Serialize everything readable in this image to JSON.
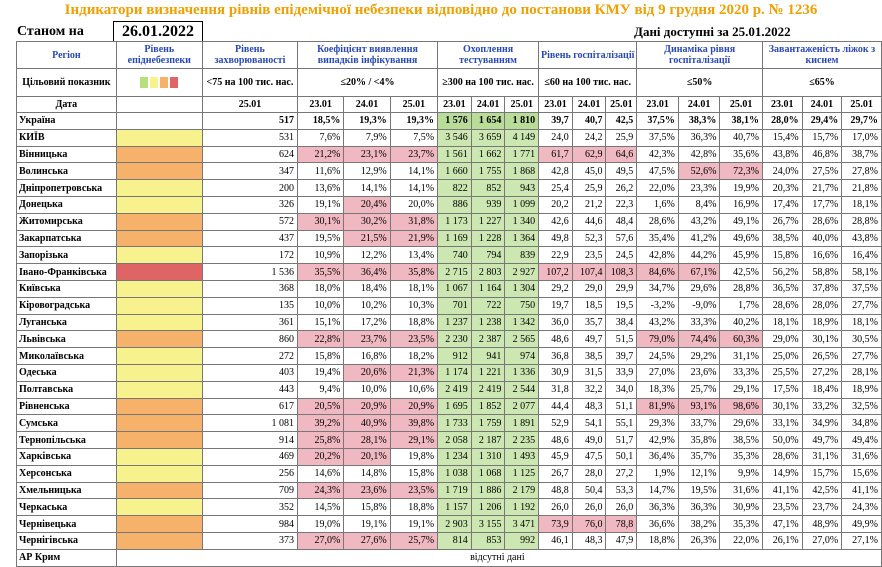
{
  "title": "Індикатори визначення рівнів епідемічної небезпеки відповідно до постанови КМУ від 9 грудня 2020 р. № 1236",
  "asof_label": "Станом на",
  "asof_date": "26.01.2022",
  "data_available": "Дані доступні за 25.01.2022",
  "headers": {
    "region": "Регіон",
    "level": "Рівень епіднебезпеки",
    "incidence": "Рівень захворюваності",
    "detection": "Коефіцієнт виявлення випадків інфікування",
    "testing": "Охоплення тестуванням",
    "hosp": "Рівень госпіталізації",
    "dynamics": "Динаміка рівня госпіталізації",
    "beds": "Завантаженість ліжок з киснем"
  },
  "targets": {
    "label": "Цільовий показник",
    "incidence": "<75 на 100 тис. нас.",
    "detection": "≤20% / <4%",
    "testing": "≥300 на 100 тис. нас.",
    "hosp": "≤60 на 100 тис. нас.",
    "dynamics": "≤50%",
    "beds": "≤65%"
  },
  "level_colors": [
    "#b8e07a",
    "#f7f28e",
    "#f6b26b",
    "#e06466"
  ],
  "dates_label": "Дата",
  "dates": {
    "incidence": "25.01",
    "d1": "23.01",
    "d2": "24.01",
    "d3": "25.01"
  },
  "no_data": "відсутні дані",
  "rows": [
    {
      "name": "Україна",
      "level": "",
      "inc": "517",
      "det": [
        "18,5%",
        "19,3%",
        "19,3%"
      ],
      "tst": [
        "1 576",
        "1 654",
        "1 810"
      ],
      "hosp": [
        "39,7",
        "40,7",
        "42,5"
      ],
      "dyn": [
        "37,5%",
        "38,3%",
        "38,1%"
      ],
      "beds": [
        "28,0%",
        "29,4%",
        "29,7%"
      ],
      "bold": true
    },
    {
      "name": "КИЇВ",
      "level": "yel",
      "inc": "531",
      "det": [
        "7,6%",
        "7,9%",
        "7,5%"
      ],
      "tst": [
        "3 546",
        "3 659",
        "4 149"
      ],
      "hosp": [
        "24,0",
        "24,2",
        "25,9"
      ],
      "dyn": [
        "37,5%",
        "36,3%",
        "40,7%"
      ],
      "beds": [
        "15,4%",
        "15,7%",
        "17,0%"
      ]
    },
    {
      "name": "Вінницька",
      "level": "org",
      "inc": "624",
      "det": [
        "21,2%",
        "23,1%",
        "23,7%"
      ],
      "tst": [
        "1 561",
        "1 662",
        "1 771"
      ],
      "hosp": [
        "61,7",
        "62,9",
        "64,6"
      ],
      "dyn": [
        "42,3%",
        "42,8%",
        "35,6%"
      ],
      "beds": [
        "43,8%",
        "46,8%",
        "38,7%"
      ],
      "det_hi": [
        1,
        1,
        1
      ],
      "hosp_hi": [
        1,
        1,
        1
      ]
    },
    {
      "name": "Волинська",
      "level": "org",
      "inc": "347",
      "det": [
        "11,6%",
        "12,9%",
        "14,1%"
      ],
      "tst": [
        "1 660",
        "1 755",
        "1 868"
      ],
      "hosp": [
        "42,8",
        "45,0",
        "49,5"
      ],
      "dyn": [
        "47,5%",
        "52,6%",
        "72,3%"
      ],
      "beds": [
        "24,0%",
        "27,5%",
        "27,8%"
      ],
      "dyn_hi": [
        0,
        1,
        1
      ]
    },
    {
      "name": "Дніпропетровська",
      "level": "yel",
      "inc": "200",
      "det": [
        "13,6%",
        "14,1%",
        "14,1%"
      ],
      "tst": [
        "822",
        "852",
        "943"
      ],
      "hosp": [
        "25,4",
        "25,9",
        "26,2"
      ],
      "dyn": [
        "22,0%",
        "23,3%",
        "19,9%"
      ],
      "beds": [
        "20,3%",
        "21,7%",
        "21,8%"
      ]
    },
    {
      "name": "Донецька",
      "level": "yel",
      "inc": "326",
      "det": [
        "19,1%",
        "20,4%",
        "20,0%"
      ],
      "tst": [
        "886",
        "939",
        "1 099"
      ],
      "hosp": [
        "20,2",
        "21,2",
        "22,3"
      ],
      "dyn": [
        "1,6%",
        "8,4%",
        "16,9%"
      ],
      "beds": [
        "17,4%",
        "17,7%",
        "18,1%"
      ],
      "det_hi": [
        0,
        1,
        0
      ]
    },
    {
      "name": "Житомирська",
      "level": "org",
      "inc": "572",
      "det": [
        "30,1%",
        "30,2%",
        "31,8%"
      ],
      "tst": [
        "1 173",
        "1 227",
        "1 340"
      ],
      "hosp": [
        "42,6",
        "44,6",
        "48,4"
      ],
      "dyn": [
        "28,6%",
        "43,2%",
        "49,1%"
      ],
      "beds": [
        "26,7%",
        "28,6%",
        "28,8%"
      ],
      "det_hi": [
        1,
        1,
        1
      ]
    },
    {
      "name": "Закарпатська",
      "level": "org",
      "inc": "437",
      "det": [
        "19,5%",
        "21,5%",
        "21,9%"
      ],
      "tst": [
        "1 169",
        "1 228",
        "1 364"
      ],
      "hosp": [
        "49,8",
        "52,3",
        "57,6"
      ],
      "dyn": [
        "35,4%",
        "41,2%",
        "49,6%"
      ],
      "beds": [
        "38,5%",
        "40,0%",
        "43,8%"
      ],
      "det_hi": [
        0,
        1,
        1
      ]
    },
    {
      "name": "Запорізька",
      "level": "yel",
      "inc": "172",
      "det": [
        "10,9%",
        "12,2%",
        "13,4%"
      ],
      "tst": [
        "740",
        "794",
        "839"
      ],
      "hosp": [
        "22,9",
        "23,5",
        "24,5"
      ],
      "dyn": [
        "42,8%",
        "44,2%",
        "45,9%"
      ],
      "beds": [
        "15,8%",
        "16,6%",
        "16,4%"
      ]
    },
    {
      "name": "Івано-Франківська",
      "level": "red",
      "inc": "1 536",
      "det": [
        "35,5%",
        "36,4%",
        "35,8%"
      ],
      "tst": [
        "2 715",
        "2 803",
        "2 927"
      ],
      "hosp": [
        "107,2",
        "107,4",
        "108,3"
      ],
      "dyn": [
        "84,6%",
        "67,1%",
        "42,5%"
      ],
      "beds": [
        "56,2%",
        "58,8%",
        "58,1%"
      ],
      "det_hi": [
        1,
        1,
        1
      ],
      "hosp_hi": [
        1,
        1,
        1
      ],
      "dyn_hi": [
        1,
        1,
        0
      ]
    },
    {
      "name": "Київська",
      "level": "yel",
      "inc": "368",
      "det": [
        "18,0%",
        "18,4%",
        "18,1%"
      ],
      "tst": [
        "1 067",
        "1 164",
        "1 304"
      ],
      "hosp": [
        "29,2",
        "29,0",
        "29,9"
      ],
      "dyn": [
        "34,7%",
        "29,6%",
        "28,8%"
      ],
      "beds": [
        "36,5%",
        "37,8%",
        "37,5%"
      ]
    },
    {
      "name": "Кіровоградська",
      "level": "yel",
      "inc": "135",
      "det": [
        "10,0%",
        "10,2%",
        "10,3%"
      ],
      "tst": [
        "701",
        "722",
        "750"
      ],
      "hosp": [
        "19,7",
        "18,5",
        "19,5"
      ],
      "dyn": [
        "-3,2%",
        "-9,0%",
        "1,7%"
      ],
      "beds": [
        "28,6%",
        "28,0%",
        "27,7%"
      ]
    },
    {
      "name": "Луганська",
      "level": "yel",
      "inc": "361",
      "det": [
        "15,1%",
        "17,2%",
        "18,8%"
      ],
      "tst": [
        "1 237",
        "1 238",
        "1 342"
      ],
      "hosp": [
        "36,0",
        "35,7",
        "38,4"
      ],
      "dyn": [
        "43,2%",
        "33,3%",
        "40,2%"
      ],
      "beds": [
        "18,1%",
        "18,9%",
        "18,1%"
      ]
    },
    {
      "name": "Львівська",
      "level": "org",
      "inc": "860",
      "det": [
        "22,8%",
        "23,7%",
        "23,5%"
      ],
      "tst": [
        "2 230",
        "2 387",
        "2 565"
      ],
      "hosp": [
        "48,6",
        "49,7",
        "51,5"
      ],
      "dyn": [
        "79,0%",
        "74,4%",
        "60,3%"
      ],
      "beds": [
        "29,0%",
        "30,1%",
        "30,5%"
      ],
      "det_hi": [
        1,
        1,
        1
      ],
      "dyn_hi": [
        1,
        1,
        1
      ]
    },
    {
      "name": "Миколаївська",
      "level": "yel",
      "inc": "272",
      "det": [
        "15,8%",
        "16,8%",
        "18,2%"
      ],
      "tst": [
        "912",
        "941",
        "974"
      ],
      "hosp": [
        "36,8",
        "38,5",
        "39,7"
      ],
      "dyn": [
        "24,5%",
        "29,2%",
        "31,1%"
      ],
      "beds": [
        "25,0%",
        "26,5%",
        "27,7%"
      ]
    },
    {
      "name": "Одеська",
      "level": "yel",
      "inc": "403",
      "det": [
        "19,4%",
        "20,6%",
        "21,3%"
      ],
      "tst": [
        "1 174",
        "1 221",
        "1 336"
      ],
      "hosp": [
        "30,9",
        "31,5",
        "33,9"
      ],
      "dyn": [
        "27,0%",
        "23,6%",
        "33,3%"
      ],
      "beds": [
        "25,5%",
        "27,2%",
        "28,1%"
      ],
      "det_hi": [
        0,
        1,
        1
      ]
    },
    {
      "name": "Полтавська",
      "level": "yel",
      "inc": "443",
      "det": [
        "9,4%",
        "10,0%",
        "10,6%"
      ],
      "tst": [
        "2 419",
        "2 419",
        "2 544"
      ],
      "hosp": [
        "31,8",
        "32,2",
        "34,0"
      ],
      "dyn": [
        "18,3%",
        "25,7%",
        "29,1%"
      ],
      "beds": [
        "17,5%",
        "18,4%",
        "18,9%"
      ]
    },
    {
      "name": "Рівненська",
      "level": "org",
      "inc": "617",
      "det": [
        "20,5%",
        "20,9%",
        "20,9%"
      ],
      "tst": [
        "1 695",
        "1 852",
        "2 077"
      ],
      "hosp": [
        "44,4",
        "48,3",
        "51,1"
      ],
      "dyn": [
        "81,9%",
        "93,1%",
        "98,6%"
      ],
      "beds": [
        "30,1%",
        "33,2%",
        "32,5%"
      ],
      "det_hi": [
        1,
        1,
        1
      ],
      "dyn_hi": [
        1,
        1,
        1
      ]
    },
    {
      "name": "Сумська",
      "level": "org",
      "inc": "1 081",
      "det": [
        "39,2%",
        "40,9%",
        "39,8%"
      ],
      "tst": [
        "1 733",
        "1 759",
        "1 891"
      ],
      "hosp": [
        "52,9",
        "54,1",
        "55,1"
      ],
      "dyn": [
        "29,3%",
        "33,7%",
        "29,6%"
      ],
      "beds": [
        "33,1%",
        "34,9%",
        "34,8%"
      ],
      "det_hi": [
        1,
        1,
        1
      ]
    },
    {
      "name": "Тернопільська",
      "level": "org",
      "inc": "914",
      "det": [
        "25,8%",
        "28,1%",
        "29,1%"
      ],
      "tst": [
        "2 058",
        "2 187",
        "2 235"
      ],
      "hosp": [
        "48,6",
        "49,0",
        "51,7"
      ],
      "dyn": [
        "42,9%",
        "35,8%",
        "38,5%"
      ],
      "beds": [
        "50,0%",
        "49,7%",
        "49,4%"
      ],
      "det_hi": [
        1,
        1,
        1
      ]
    },
    {
      "name": "Харківська",
      "level": "yel",
      "inc": "469",
      "det": [
        "20,2%",
        "20,1%",
        "19,8%"
      ],
      "tst": [
        "1 234",
        "1 310",
        "1 493"
      ],
      "hosp": [
        "45,9",
        "47,5",
        "50,1"
      ],
      "dyn": [
        "36,4%",
        "35,7%",
        "35,3%"
      ],
      "beds": [
        "28,6%",
        "31,1%",
        "31,6%"
      ],
      "det_hi": [
        1,
        1,
        0
      ]
    },
    {
      "name": "Херсонська",
      "level": "yel",
      "inc": "256",
      "det": [
        "14,6%",
        "14,8%",
        "15,8%"
      ],
      "tst": [
        "1 038",
        "1 068",
        "1 125"
      ],
      "hosp": [
        "26,7",
        "28,0",
        "27,2"
      ],
      "dyn": [
        "1,9%",
        "12,1%",
        "9,9%"
      ],
      "beds": [
        "14,9%",
        "15,7%",
        "15,6%"
      ]
    },
    {
      "name": "Хмельницька",
      "level": "org",
      "inc": "709",
      "det": [
        "24,3%",
        "23,6%",
        "23,5%"
      ],
      "tst": [
        "1 719",
        "1 886",
        "2 179"
      ],
      "hosp": [
        "48,8",
        "50,4",
        "53,3"
      ],
      "dyn": [
        "14,7%",
        "19,5%",
        "31,6%"
      ],
      "beds": [
        "41,1%",
        "42,5%",
        "41,1%"
      ],
      "det_hi": [
        1,
        1,
        1
      ]
    },
    {
      "name": "Черкаська",
      "level": "yel",
      "inc": "352",
      "det": [
        "14,5%",
        "15,8%",
        "18,8%"
      ],
      "tst": [
        "1 157",
        "1 206",
        "1 192"
      ],
      "hosp": [
        "26,0",
        "26,0",
        "26,0"
      ],
      "dyn": [
        "36,3%",
        "36,3%",
        "30,9%"
      ],
      "beds": [
        "23,5%",
        "23,7%",
        "24,3%"
      ]
    },
    {
      "name": "Чернівецька",
      "level": "org",
      "inc": "984",
      "det": [
        "19,0%",
        "19,1%",
        "19,1%"
      ],
      "tst": [
        "2 903",
        "3 155",
        "3 471"
      ],
      "hosp": [
        "73,9",
        "76,0",
        "78,8"
      ],
      "dyn": [
        "36,6%",
        "38,2%",
        "35,3%"
      ],
      "beds": [
        "47,1%",
        "48,9%",
        "49,9%"
      ],
      "hosp_hi": [
        1,
        1,
        1
      ]
    },
    {
      "name": "Чернігівська",
      "level": "org",
      "inc": "373",
      "det": [
        "27,0%",
        "27,6%",
        "25,7%"
      ],
      "tst": [
        "814",
        "853",
        "992"
      ],
      "hosp": [
        "46,1",
        "48,3",
        "47,9"
      ],
      "dyn": [
        "18,8%",
        "26,3%",
        "22,0%"
      ],
      "beds": [
        "26,1%",
        "27,0%",
        "27,1%"
      ],
      "det_hi": [
        1,
        1,
        1
      ]
    }
  ],
  "last_row": "АР Крим"
}
